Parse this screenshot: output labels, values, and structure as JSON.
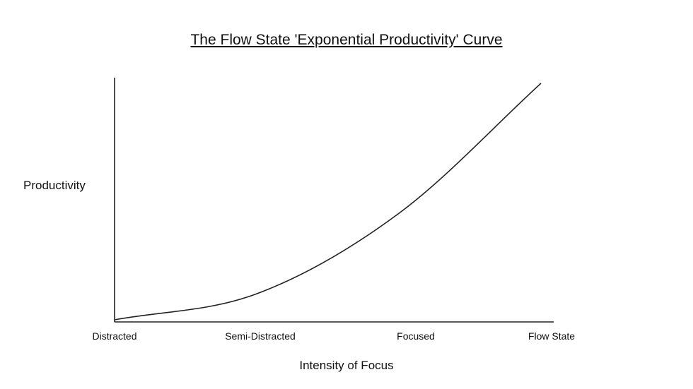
{
  "chart_data": {
    "type": "line",
    "title": "The Flow State 'Exponential Productivity' Curve",
    "xlabel": "Intensity of Focus",
    "ylabel": "Productivity",
    "categories": [
      "Distracted",
      "Semi-Distracted",
      "Focused",
      "Flow State"
    ],
    "series": [
      {
        "values": [
          0.0,
          0.11,
          0.45,
          1.0
        ]
      }
    ],
    "xlim": [
      0,
      3
    ],
    "ylim": [
      0,
      1
    ],
    "grid": false,
    "legend": "none",
    "colors": {
      "line": "#222222",
      "text": "#111111",
      "background": "#ffffff"
    }
  }
}
